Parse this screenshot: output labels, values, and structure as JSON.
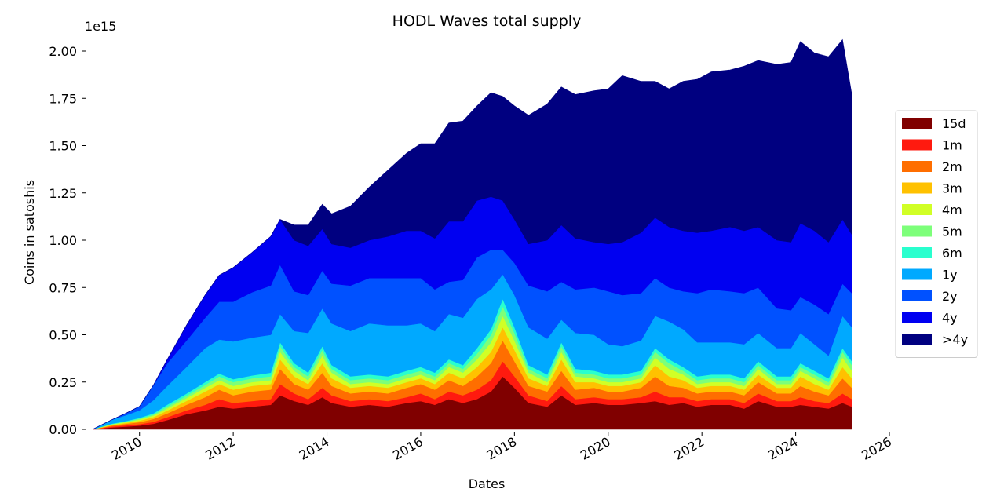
{
  "chart_data": {
    "type": "area",
    "stacked": true,
    "title": "HODL Waves total supply",
    "xlabel": "Dates",
    "ylabel": "Coins in satoshis",
    "y_offset_text": "1e15",
    "xlim": [
      2009.0,
      2026.0
    ],
    "ylim": [
      0,
      2000000000000000.0
    ],
    "y_scale": 1000000000000000.0,
    "grid": false,
    "legend_position": "right",
    "x_ticks": [
      {
        "value": 2010,
        "label": "2010"
      },
      {
        "value": 2012,
        "label": "2012"
      },
      {
        "value": 2014,
        "label": "2014"
      },
      {
        "value": 2016,
        "label": "2016"
      },
      {
        "value": 2018,
        "label": "2018"
      },
      {
        "value": 2020,
        "label": "2020"
      },
      {
        "value": 2022,
        "label": "2022"
      },
      {
        "value": 2024,
        "label": "2024"
      },
      {
        "value": 2026,
        "label": "2026"
      }
    ],
    "y_ticks": [
      {
        "value": 0.0,
        "label": "0.00"
      },
      {
        "value": 0.25,
        "label": "0.25"
      },
      {
        "value": 0.5,
        "label": "0.50"
      },
      {
        "value": 0.75,
        "label": "0.75"
      },
      {
        "value": 1.0,
        "label": "1.00"
      },
      {
        "value": 1.25,
        "label": "1.25"
      },
      {
        "value": 1.5,
        "label": "1.50"
      },
      {
        "value": 1.75,
        "label": "1.75"
      },
      {
        "value": 2.0,
        "label": "2.00"
      }
    ],
    "x": [
      2009.0,
      2009.4,
      2009.7,
      2010.0,
      2010.3,
      2010.6,
      2011.0,
      2011.4,
      2011.7,
      2012.0,
      2012.4,
      2012.8,
      2013.0,
      2013.3,
      2013.6,
      2013.9,
      2014.1,
      2014.5,
      2014.9,
      2015.3,
      2015.7,
      2016.0,
      2016.3,
      2016.6,
      2016.9,
      2017.2,
      2017.5,
      2017.75,
      2018.0,
      2018.3,
      2018.7,
      2019.0,
      2019.3,
      2019.7,
      2020.0,
      2020.3,
      2020.7,
      2021.0,
      2021.3,
      2021.6,
      2021.9,
      2022.2,
      2022.6,
      2022.9,
      2023.2,
      2023.6,
      2023.9,
      2024.1,
      2024.4,
      2024.7,
      2025.0,
      2025.2
    ],
    "series": [
      {
        "name": "15d",
        "color": "#800000",
        "values": [
          0.0,
          0.01,
          0.015,
          0.02,
          0.03,
          0.05,
          0.08,
          0.1,
          0.12,
          0.11,
          0.12,
          0.13,
          0.18,
          0.15,
          0.13,
          0.17,
          0.14,
          0.12,
          0.13,
          0.12,
          0.14,
          0.15,
          0.13,
          0.16,
          0.14,
          0.16,
          0.2,
          0.28,
          0.22,
          0.14,
          0.12,
          0.18,
          0.13,
          0.14,
          0.13,
          0.13,
          0.14,
          0.15,
          0.13,
          0.14,
          0.12,
          0.13,
          0.13,
          0.11,
          0.15,
          0.12,
          0.12,
          0.13,
          0.12,
          0.11,
          0.14,
          0.12
        ]
      },
      {
        "name": "1m",
        "color": "#ff1a0f",
        "values": [
          0.0,
          0.005,
          0.006,
          0.008,
          0.01,
          0.015,
          0.02,
          0.03,
          0.04,
          0.03,
          0.03,
          0.03,
          0.06,
          0.04,
          0.03,
          0.05,
          0.04,
          0.03,
          0.03,
          0.03,
          0.03,
          0.04,
          0.03,
          0.04,
          0.04,
          0.05,
          0.06,
          0.08,
          0.06,
          0.04,
          0.03,
          0.05,
          0.03,
          0.03,
          0.03,
          0.03,
          0.03,
          0.05,
          0.04,
          0.03,
          0.03,
          0.03,
          0.03,
          0.03,
          0.04,
          0.03,
          0.03,
          0.04,
          0.03,
          0.03,
          0.05,
          0.04
        ]
      },
      {
        "name": "2m",
        "color": "#ff6e00",
        "values": [
          0.0,
          0.005,
          0.008,
          0.01,
          0.015,
          0.02,
          0.03,
          0.04,
          0.05,
          0.04,
          0.05,
          0.05,
          0.08,
          0.05,
          0.05,
          0.08,
          0.05,
          0.04,
          0.04,
          0.04,
          0.05,
          0.05,
          0.05,
          0.06,
          0.05,
          0.07,
          0.09,
          0.11,
          0.08,
          0.05,
          0.05,
          0.08,
          0.05,
          0.05,
          0.04,
          0.04,
          0.05,
          0.08,
          0.06,
          0.05,
          0.04,
          0.04,
          0.04,
          0.04,
          0.06,
          0.04,
          0.04,
          0.06,
          0.05,
          0.04,
          0.08,
          0.06
        ]
      },
      {
        "name": "3m",
        "color": "#ffc100",
        "values": [
          0.0,
          0.003,
          0.005,
          0.008,
          0.01,
          0.015,
          0.02,
          0.03,
          0.03,
          0.03,
          0.03,
          0.03,
          0.05,
          0.04,
          0.03,
          0.05,
          0.04,
          0.03,
          0.03,
          0.03,
          0.03,
          0.03,
          0.03,
          0.04,
          0.04,
          0.05,
          0.06,
          0.07,
          0.06,
          0.04,
          0.03,
          0.06,
          0.04,
          0.03,
          0.03,
          0.03,
          0.03,
          0.06,
          0.05,
          0.04,
          0.03,
          0.03,
          0.03,
          0.03,
          0.04,
          0.03,
          0.03,
          0.05,
          0.04,
          0.03,
          0.06,
          0.05
        ]
      },
      {
        "name": "4m",
        "color": "#d1ff26",
        "values": [
          0.0,
          0.003,
          0.004,
          0.006,
          0.008,
          0.012,
          0.015,
          0.02,
          0.02,
          0.02,
          0.02,
          0.02,
          0.04,
          0.03,
          0.02,
          0.04,
          0.03,
          0.02,
          0.02,
          0.02,
          0.02,
          0.02,
          0.02,
          0.03,
          0.03,
          0.04,
          0.05,
          0.06,
          0.05,
          0.03,
          0.02,
          0.04,
          0.03,
          0.02,
          0.02,
          0.02,
          0.02,
          0.04,
          0.04,
          0.03,
          0.02,
          0.02,
          0.02,
          0.02,
          0.03,
          0.02,
          0.02,
          0.03,
          0.03,
          0.02,
          0.05,
          0.04
        ]
      },
      {
        "name": "5m",
        "color": "#7dff7a",
        "values": [
          0.0,
          0.002,
          0.003,
          0.005,
          0.006,
          0.01,
          0.012,
          0.015,
          0.02,
          0.02,
          0.02,
          0.02,
          0.03,
          0.02,
          0.02,
          0.03,
          0.02,
          0.02,
          0.02,
          0.02,
          0.02,
          0.02,
          0.02,
          0.02,
          0.02,
          0.03,
          0.04,
          0.05,
          0.04,
          0.02,
          0.02,
          0.03,
          0.02,
          0.02,
          0.02,
          0.02,
          0.02,
          0.03,
          0.03,
          0.02,
          0.02,
          0.02,
          0.02,
          0.02,
          0.02,
          0.02,
          0.02,
          0.02,
          0.02,
          0.02,
          0.03,
          0.03
        ]
      },
      {
        "name": "6m",
        "color": "#29ffce",
        "values": [
          0.0,
          0.002,
          0.003,
          0.004,
          0.006,
          0.01,
          0.012,
          0.015,
          0.015,
          0.015,
          0.015,
          0.02,
          0.02,
          0.02,
          0.02,
          0.02,
          0.02,
          0.02,
          0.02,
          0.02,
          0.02,
          0.02,
          0.02,
          0.02,
          0.02,
          0.03,
          0.03,
          0.04,
          0.03,
          0.02,
          0.02,
          0.02,
          0.02,
          0.02,
          0.02,
          0.02,
          0.02,
          0.02,
          0.02,
          0.02,
          0.02,
          0.02,
          0.02,
          0.02,
          0.02,
          0.02,
          0.02,
          0.02,
          0.02,
          0.02,
          0.02,
          0.02
        ]
      },
      {
        "name": "1y",
        "color": "#00a9ff",
        "values": [
          0.0,
          0.02,
          0.03,
          0.04,
          0.07,
          0.1,
          0.14,
          0.18,
          0.18,
          0.2,
          0.2,
          0.2,
          0.15,
          0.17,
          0.21,
          0.2,
          0.22,
          0.24,
          0.27,
          0.27,
          0.24,
          0.23,
          0.22,
          0.24,
          0.25,
          0.26,
          0.21,
          0.13,
          0.17,
          0.2,
          0.19,
          0.12,
          0.19,
          0.19,
          0.16,
          0.15,
          0.16,
          0.17,
          0.2,
          0.2,
          0.18,
          0.17,
          0.17,
          0.18,
          0.15,
          0.15,
          0.15,
          0.16,
          0.14,
          0.12,
          0.17,
          0.18
        ]
      },
      {
        "name": "2y",
        "color": "#0051ff",
        "values": [
          0.0,
          0.0,
          0.01,
          0.02,
          0.08,
          0.12,
          0.14,
          0.16,
          0.2,
          0.21,
          0.24,
          0.26,
          0.26,
          0.21,
          0.2,
          0.2,
          0.21,
          0.24,
          0.24,
          0.25,
          0.25,
          0.24,
          0.22,
          0.17,
          0.2,
          0.22,
          0.21,
          0.13,
          0.17,
          0.22,
          0.25,
          0.2,
          0.23,
          0.25,
          0.28,
          0.27,
          0.25,
          0.2,
          0.18,
          0.2,
          0.26,
          0.28,
          0.27,
          0.27,
          0.24,
          0.21,
          0.2,
          0.19,
          0.21,
          0.22,
          0.17,
          0.18
        ]
      },
      {
        "name": "4y",
        "color": "#0000f1",
        "values": [
          0.0,
          0.0,
          0.0,
          0.0,
          0.0,
          0.02,
          0.08,
          0.12,
          0.14,
          0.18,
          0.21,
          0.26,
          0.24,
          0.27,
          0.26,
          0.22,
          0.21,
          0.2,
          0.2,
          0.22,
          0.25,
          0.25,
          0.27,
          0.32,
          0.31,
          0.3,
          0.28,
          0.26,
          0.23,
          0.22,
          0.27,
          0.3,
          0.27,
          0.24,
          0.25,
          0.28,
          0.32,
          0.32,
          0.32,
          0.32,
          0.32,
          0.31,
          0.34,
          0.33,
          0.32,
          0.36,
          0.36,
          0.39,
          0.39,
          0.38,
          0.34,
          0.31
        ]
      },
      {
        "name": ">4y",
        "color": "#000080",
        "values": [
          0.0,
          0.0,
          0.0,
          0.0,
          0.0,
          0.0,
          0.0,
          0.0,
          0.0,
          0.0,
          0.0,
          0.0,
          0.0,
          0.08,
          0.11,
          0.13,
          0.16,
          0.22,
          0.28,
          0.35,
          0.41,
          0.46,
          0.5,
          0.52,
          0.53,
          0.5,
          0.55,
          0.55,
          0.6,
          0.68,
          0.72,
          0.73,
          0.76,
          0.8,
          0.82,
          0.88,
          0.8,
          0.72,
          0.73,
          0.79,
          0.81,
          0.84,
          0.83,
          0.87,
          0.88,
          0.93,
          0.95,
          0.96,
          0.94,
          0.98,
          0.95,
          0.74
        ]
      }
    ]
  }
}
